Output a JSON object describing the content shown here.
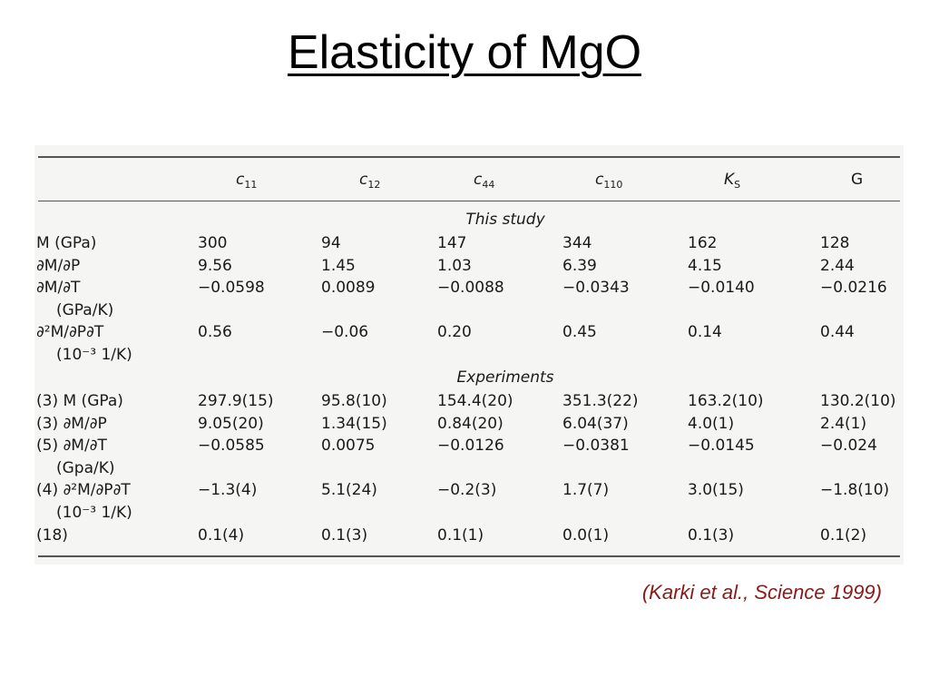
{
  "title": "Elasticity of MgO",
  "citation": "(Karki et al., Science 1999)",
  "table": {
    "columns": [
      {
        "base": "c",
        "sub": "11"
      },
      {
        "base": "c",
        "sub": "12"
      },
      {
        "base": "c",
        "sub": "44"
      },
      {
        "base": "c",
        "sub": "110"
      },
      {
        "base": "K",
        "sub": "S"
      },
      {
        "base": "G",
        "sub": ""
      }
    ],
    "sections": [
      {
        "heading": "This study",
        "rows": [
          {
            "label": "M (GPa)",
            "values": [
              "300",
              "94",
              "147",
              "344",
              "162",
              "128"
            ]
          },
          {
            "label": "∂M/∂P",
            "values": [
              "9.56",
              "1.45",
              "1.03",
              "6.39",
              "4.15",
              "2.44"
            ]
          },
          {
            "label": "∂M/∂T",
            "values": [
              "−0.0598",
              "0.0089",
              "−0.0088",
              "−0.0343",
              "−0.0140",
              "−0.0216"
            ]
          },
          {
            "label": "(GPa/K)",
            "values": [
              "",
              "",
              "",
              "",
              "",
              ""
            ]
          },
          {
            "label": "∂²M/∂P∂T",
            "values": [
              "0.56",
              "−0.06",
              "0.20",
              "0.45",
              "0.14",
              "0.44"
            ]
          },
          {
            "label": "(10⁻³ 1/K)",
            "values": [
              "",
              "",
              "",
              "",
              "",
              ""
            ]
          }
        ]
      },
      {
        "heading": "Experiments",
        "rows": [
          {
            "label": "(3) M (GPa)",
            "values": [
              "297.9(15)",
              "95.8(10)",
              "154.4(20)",
              "351.3(22)",
              "163.2(10)",
              "130.2(10)"
            ]
          },
          {
            "label": "(3) ∂M/∂P",
            "values": [
              "9.05(20)",
              "1.34(15)",
              "0.84(20)",
              "6.04(37)",
              "4.0(1)",
              "2.4(1)"
            ]
          },
          {
            "label": "(5) ∂M/∂T",
            "values": [
              "−0.0585",
              "0.0075",
              "−0.0126",
              "−0.0381",
              "−0.0145",
              "−0.024"
            ]
          },
          {
            "label": "(Gpa/K)",
            "values": [
              "",
              "",
              "",
              "",
              "",
              ""
            ]
          },
          {
            "label": "(4) ∂²M/∂P∂T",
            "values": [
              "−1.3(4)",
              "5.1(24)",
              "−0.2(3)",
              "1.7(7)",
              "3.0(15)",
              "−1.8(10)"
            ]
          },
          {
            "label": "(10⁻³ 1/K)",
            "values": [
              "",
              "",
              "",
              "",
              "",
              ""
            ]
          },
          {
            "label": "(18)",
            "values": [
              "0.1(4)",
              "0.1(3)",
              "0.1(1)",
              "0.0(1)",
              "0.1(3)",
              "0.1(2)"
            ]
          }
        ]
      }
    ]
  }
}
